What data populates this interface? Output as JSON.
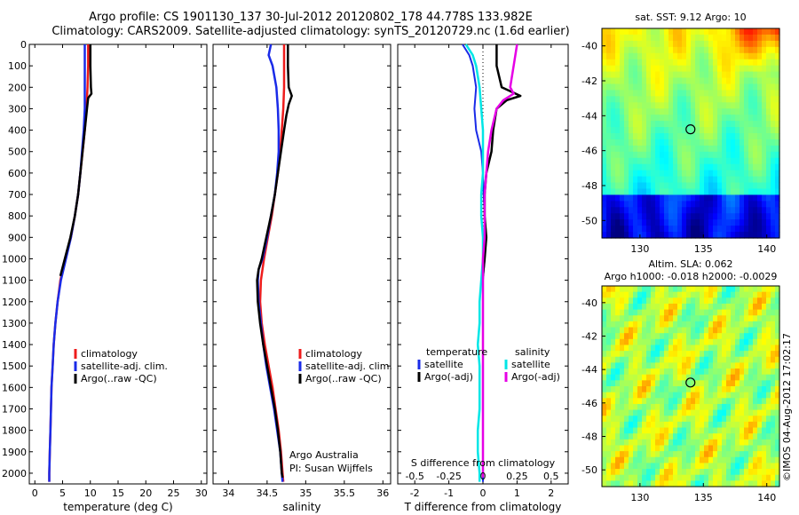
{
  "header": {
    "line1": "Argo profile: CS 1901130_137 30-Jul-2012 20120802_178 44.778S 133.982E",
    "line2": "Climatology: CARS2009. Satellite-adjusted climatology: synTS_20120729.nc (1.6d earlier)"
  },
  "side_label": "©IMOS 04-Aug-2012 17:02:17",
  "colors": {
    "climatology": "#ee1c1c",
    "satellite": "#1a2be8",
    "argo": "#000000",
    "sat_s": "#00e6e6",
    "argo_s": "#e600e6",
    "circle": "#000000"
  },
  "chart_data": [
    {
      "id": "temperature",
      "type": "line",
      "xlabel": "temperature (deg C)",
      "ylabel": "",
      "xlim": [
        -1,
        31
      ],
      "ylim": [
        2050,
        0
      ],
      "xticks": [
        0,
        5,
        10,
        15,
        20,
        25,
        30
      ],
      "yticks": [
        0,
        100,
        200,
        300,
        400,
        500,
        600,
        700,
        800,
        900,
        1000,
        1100,
        1200,
        1300,
        1400,
        1500,
        1600,
        1700,
        1800,
        1900,
        2000
      ],
      "legend": [
        "climatology",
        "satellite-adj. clim.",
        "Argo(..raw -QC)"
      ],
      "series": [
        {
          "name": "climatology",
          "color": "#ee1c1c",
          "points": [
            [
              9.6,
              0
            ],
            [
              9.6,
              100
            ],
            [
              9.5,
              200
            ],
            [
              9.3,
              300
            ],
            [
              9.0,
              400
            ],
            [
              8.6,
              500
            ],
            [
              8.2,
              600
            ],
            [
              7.8,
              700
            ],
            [
              7.2,
              800
            ],
            [
              6.5,
              900
            ],
            [
              5.5,
              1000
            ],
            [
              4.6,
              1100
            ],
            [
              4.1,
              1200
            ],
            [
              3.7,
              1300
            ],
            [
              3.4,
              1400
            ],
            [
              3.2,
              1500
            ],
            [
              3.0,
              1600
            ],
            [
              2.9,
              1700
            ],
            [
              2.8,
              1800
            ],
            [
              2.7,
              1900
            ],
            [
              2.6,
              2000
            ],
            [
              2.6,
              2040
            ]
          ]
        },
        {
          "name": "satellite-adj. clim.",
          "color": "#1a2be8",
          "points": [
            [
              9.0,
              0
            ],
            [
              9.0,
              100
            ],
            [
              9.0,
              200
            ],
            [
              9.0,
              300
            ],
            [
              8.8,
              400
            ],
            [
              8.5,
              500
            ],
            [
              8.2,
              600
            ],
            [
              7.8,
              700
            ],
            [
              7.2,
              800
            ],
            [
              6.5,
              900
            ],
            [
              5.6,
              1000
            ],
            [
              4.7,
              1100
            ],
            [
              4.1,
              1200
            ],
            [
              3.7,
              1300
            ],
            [
              3.4,
              1400
            ],
            [
              3.2,
              1500
            ],
            [
              3.0,
              1600
            ],
            [
              2.9,
              1700
            ],
            [
              2.8,
              1800
            ],
            [
              2.7,
              1900
            ],
            [
              2.6,
              2000
            ],
            [
              2.6,
              2040
            ]
          ]
        },
        {
          "name": "Argo(..raw -QC)",
          "color": "#000000",
          "points": [
            [
              10.0,
              0
            ],
            [
              10.0,
              100
            ],
            [
              10.1,
              200
            ],
            [
              10.2,
              230
            ],
            [
              9.6,
              250
            ],
            [
              9.4,
              300
            ],
            [
              9.0,
              400
            ],
            [
              8.6,
              500
            ],
            [
              8.2,
              600
            ],
            [
              7.8,
              700
            ],
            [
              7.2,
              800
            ],
            [
              6.4,
              900
            ],
            [
              5.4,
              1000
            ],
            [
              4.6,
              1080
            ]
          ]
        }
      ]
    },
    {
      "id": "salinity",
      "type": "line",
      "xlabel": "salinity",
      "ylabel": "",
      "xlim": [
        33.8,
        36.1
      ],
      "ylim": [
        2050,
        0
      ],
      "xticks": [
        34,
        34.5,
        35,
        35.5,
        36
      ],
      "legend": [
        "climatology",
        "satellite-adj. clim.",
        "Argo(..raw -QC)"
      ],
      "annotation": [
        "Argo Australia",
        "PI: Susan Wijffels"
      ],
      "series": [
        {
          "name": "climatology",
          "color": "#ee1c1c",
          "points": [
            [
              34.72,
              0
            ],
            [
              34.72,
              100
            ],
            [
              34.72,
              200
            ],
            [
              34.71,
              300
            ],
            [
              34.69,
              400
            ],
            [
              34.67,
              500
            ],
            [
              34.64,
              600
            ],
            [
              34.6,
              700
            ],
            [
              34.56,
              800
            ],
            [
              34.51,
              900
            ],
            [
              34.46,
              1000
            ],
            [
              34.42,
              1100
            ],
            [
              34.41,
              1200
            ],
            [
              34.43,
              1300
            ],
            [
              34.47,
              1400
            ],
            [
              34.52,
              1500
            ],
            [
              34.57,
              1600
            ],
            [
              34.61,
              1700
            ],
            [
              34.65,
              1800
            ],
            [
              34.68,
              1900
            ],
            [
              34.7,
              2000
            ],
            [
              34.71,
              2040
            ]
          ]
        },
        {
          "name": "satellite-adj. clim.",
          "color": "#1a2be8",
          "points": [
            [
              34.55,
              0
            ],
            [
              34.52,
              50
            ],
            [
              34.57,
              100
            ],
            [
              34.62,
              200
            ],
            [
              34.64,
              300
            ],
            [
              34.65,
              400
            ],
            [
              34.65,
              500
            ],
            [
              34.63,
              600
            ],
            [
              34.6,
              700
            ],
            [
              34.55,
              800
            ],
            [
              34.5,
              900
            ],
            [
              34.44,
              1000
            ],
            [
              34.39,
              1050
            ],
            [
              34.38,
              1100
            ],
            [
              34.39,
              1200
            ],
            [
              34.42,
              1300
            ],
            [
              34.45,
              1400
            ],
            [
              34.49,
              1500
            ],
            [
              34.54,
              1600
            ],
            [
              34.59,
              1700
            ],
            [
              34.63,
              1800
            ],
            [
              34.67,
              1900
            ],
            [
              34.69,
              2000
            ],
            [
              34.7,
              2040
            ]
          ]
        },
        {
          "name": "Argo(..raw -QC)",
          "color": "#000000",
          "points": [
            [
              34.77,
              0
            ],
            [
              34.77,
              100
            ],
            [
              34.78,
              200
            ],
            [
              34.82,
              240
            ],
            [
              34.78,
              280
            ],
            [
              34.75,
              330
            ],
            [
              34.72,
              400
            ],
            [
              34.68,
              500
            ],
            [
              34.64,
              600
            ],
            [
              34.6,
              700
            ],
            [
              34.55,
              800
            ],
            [
              34.49,
              900
            ],
            [
              34.43,
              1000
            ],
            [
              34.39,
              1050
            ],
            [
              34.37,
              1100
            ],
            [
              34.38,
              1200
            ],
            [
              34.41,
              1300
            ],
            [
              34.45,
              1400
            ],
            [
              34.5,
              1500
            ],
            [
              34.55,
              1600
            ],
            [
              34.6,
              1700
            ],
            [
              34.64,
              1800
            ],
            [
              34.67,
              1900
            ],
            [
              34.69,
              2000
            ],
            [
              34.7,
              2020
            ]
          ]
        }
      ]
    },
    {
      "id": "difference",
      "type": "line",
      "xlabel": "T difference from climatology",
      "top_axis_label": "S difference from climatology",
      "xlim": [
        -2.5,
        2.5
      ],
      "ylim": [
        2050,
        0
      ],
      "xticks": [
        -2,
        -1,
        0,
        1,
        2
      ],
      "xticklabels": [
        "-2",
        "-1",
        "0",
        "1",
        "2"
      ],
      "top_ticks": [
        -2,
        -1,
        0,
        1,
        2
      ],
      "top_ticklabels": [
        "-0.5",
        "-0.25",
        "0",
        "0.25",
        "0.5"
      ],
      "legend_left": {
        "title": "temperature",
        "items": [
          "satellite",
          "Argo(-adj)"
        ]
      },
      "legend_right": {
        "title": "salinity",
        "items": [
          "satellite",
          "Argo(-adj)"
        ]
      },
      "series": [
        {
          "name": "satellite (temperature)",
          "color": "#1a2be8",
          "points": [
            [
              -0.6,
              0
            ],
            [
              -0.4,
              50
            ],
            [
              -0.3,
              100
            ],
            [
              -0.2,
              200
            ],
            [
              -0.25,
              300
            ],
            [
              -0.2,
              400
            ],
            [
              -0.05,
              500
            ],
            [
              0,
              600
            ],
            [
              0.02,
              700
            ],
            [
              0.05,
              800
            ],
            [
              0.1,
              900
            ],
            [
              0.05,
              1000
            ],
            [
              0,
              1100
            ],
            [
              0,
              1200
            ],
            [
              0,
              1300
            ],
            [
              0,
              1400
            ],
            [
              0,
              1500
            ],
            [
              0,
              1600
            ],
            [
              0,
              1700
            ],
            [
              0,
              1800
            ],
            [
              0,
              1900
            ],
            [
              0,
              2000
            ],
            [
              0,
              2040
            ]
          ]
        },
        {
          "name": "Argo(-adj) (temperature)",
          "color": "#000000",
          "points": [
            [
              0.4,
              0
            ],
            [
              0.4,
              100
            ],
            [
              0.55,
              200
            ],
            [
              1.1,
              240
            ],
            [
              0.7,
              260
            ],
            [
              0.4,
              300
            ],
            [
              0.3,
              400
            ],
            [
              0.25,
              500
            ],
            [
              0.1,
              600
            ],
            [
              0.05,
              700
            ],
            [
              0.05,
              800
            ],
            [
              0.1,
              900
            ],
            [
              0.05,
              1000
            ],
            [
              0,
              1080
            ]
          ]
        },
        {
          "name": "satellite (salinity)",
          "color": "#00e6e6",
          "points": [
            [
              -0.5,
              0
            ],
            [
              -0.3,
              50
            ],
            [
              -0.2,
              100
            ],
            [
              -0.1,
              200
            ],
            [
              -0.05,
              300
            ],
            [
              0,
              400
            ],
            [
              0,
              500
            ],
            [
              0,
              600
            ],
            [
              -0.05,
              700
            ],
            [
              -0.05,
              800
            ],
            [
              0,
              900
            ],
            [
              0,
              1000
            ],
            [
              -0.05,
              1100
            ],
            [
              -0.1,
              1200
            ],
            [
              -0.1,
              1300
            ],
            [
              -0.15,
              1400
            ],
            [
              -0.1,
              1500
            ],
            [
              -0.1,
              1600
            ],
            [
              -0.1,
              1700
            ],
            [
              -0.15,
              1800
            ],
            [
              -0.15,
              1900
            ],
            [
              -0.1,
              2000
            ],
            [
              -0.1,
              2040
            ]
          ]
        },
        {
          "name": "Argo(-adj) (salinity)",
          "color": "#e600e6",
          "points": [
            [
              1.0,
              0
            ],
            [
              0.95,
              50
            ],
            [
              0.9,
              100
            ],
            [
              0.8,
              200
            ],
            [
              0.9,
              230
            ],
            [
              0.6,
              260
            ],
            [
              0.4,
              300
            ],
            [
              0.25,
              400
            ],
            [
              0.15,
              500
            ],
            [
              0.1,
              600
            ],
            [
              0.05,
              700
            ],
            [
              0.05,
              800
            ],
            [
              0.05,
              900
            ],
            [
              0,
              1000
            ],
            [
              0,
              1100
            ],
            [
              0,
              1200
            ],
            [
              0,
              1300
            ],
            [
              0,
              1400
            ],
            [
              0,
              1500
            ],
            [
              0,
              1600
            ],
            [
              0,
              1700
            ],
            [
              0,
              1800
            ],
            [
              0,
              1900
            ],
            [
              0,
              2000
            ],
            [
              0,
              2020
            ]
          ]
        }
      ]
    },
    {
      "id": "sst_map",
      "type": "heatmap",
      "title": "sat. SST: 9.12 Argo: 10",
      "xlim": [
        127,
        141
      ],
      "ylim": [
        -51,
        -39
      ],
      "xticks": [
        130,
        135,
        140
      ],
      "yticks": [
        -40,
        -42,
        -44,
        -46,
        -48,
        -50
      ],
      "marker": {
        "lon": 133.982,
        "lat": -44.778
      }
    },
    {
      "id": "sla_map",
      "type": "heatmap",
      "title": "Altim. SLA: 0.062",
      "subtitle": "Argo h1000: -0.018 h2000: -0.0029",
      "xlim": [
        127,
        141
      ],
      "ylim": [
        -51,
        -39
      ],
      "xticks": [
        130,
        135,
        140
      ],
      "yticks": [
        -40,
        -42,
        -44,
        -46,
        -48,
        -50
      ],
      "marker": {
        "lon": 133.982,
        "lat": -44.778
      }
    }
  ]
}
